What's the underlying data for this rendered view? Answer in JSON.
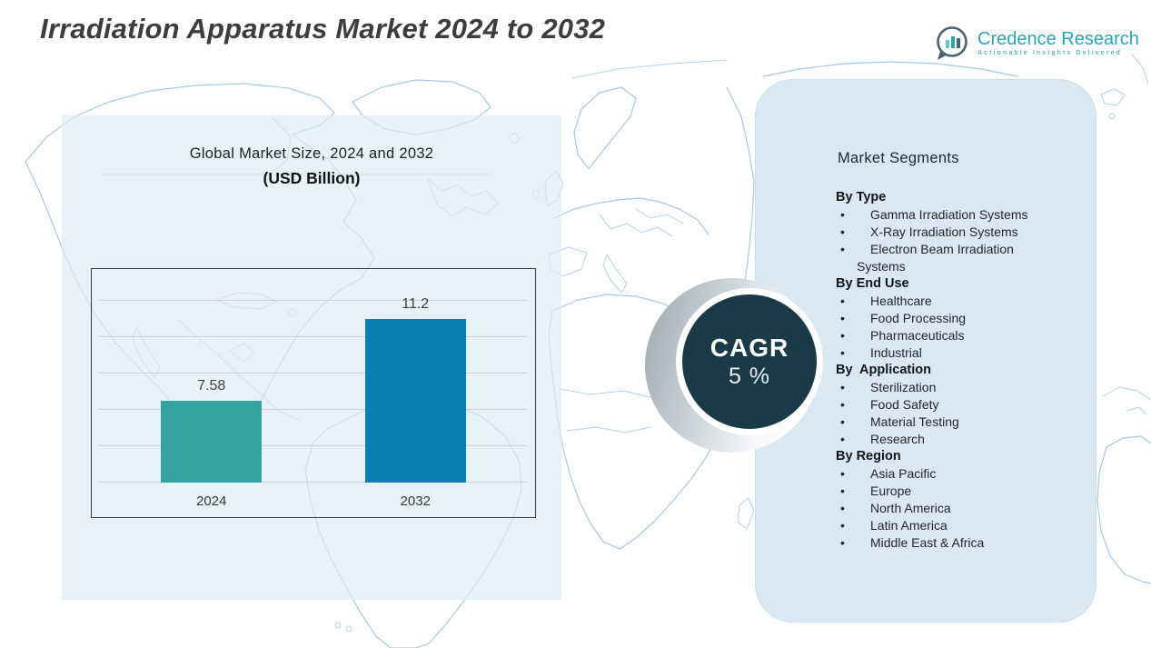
{
  "header": {
    "title": "Irradiation Apparatus Market 2024 to 2032",
    "logo": {
      "name": "Credence Research",
      "tagline": "Actionable Insights Delivered"
    }
  },
  "chart_data": {
    "type": "bar",
    "title": "Global Market Size, 2024 and 2032",
    "subtitle": "(USD Billion)",
    "categories": [
      "2024",
      "2032"
    ],
    "values": [
      7.58,
      11.2
    ],
    "value_labels": [
      "7.58",
      "11.2"
    ],
    "bar_colors": [
      "#33a2a1",
      "#0a81b2"
    ],
    "xlabel": "",
    "ylabel": "",
    "ylim": [
      4,
      12
    ],
    "gridlines": 6,
    "grid": true,
    "legend": "none"
  },
  "cagr": {
    "label": "CAGR",
    "value": "5 %"
  },
  "segments": {
    "title": "Market Segments",
    "bullet": "•",
    "sections": [
      {
        "header": "By Type",
        "items": [
          "Gamma Irradiation Systems",
          "X-Ray Irradiation Systems",
          "Electron Beam Irradiation Systems"
        ]
      },
      {
        "header": "By End Use",
        "items": [
          "Healthcare",
          "Food Processing",
          "Pharmaceuticals",
          "Industrial"
        ]
      },
      {
        "header": "By  Application",
        "items": [
          "Sterilization",
          "Food Safety",
          "Material Testing",
          "Research"
        ]
      },
      {
        "header": "By Region",
        "items": [
          "Asia Pacific",
          "Europe",
          "North America",
          "Latin America",
          "Middle East & Africa"
        ]
      }
    ]
  },
  "colors": {
    "bar_2024": "#33a2a1",
    "bar_2032": "#0a81b2",
    "cagr_circle": "#1b3a47",
    "right_panel": "#d9e8f3",
    "left_panel": "rgba(217,233,245,0.66)",
    "map_outline": "#a6c9e1",
    "brand_teal": "#2ba3b6",
    "title_gray": "#3d3d3d"
  }
}
